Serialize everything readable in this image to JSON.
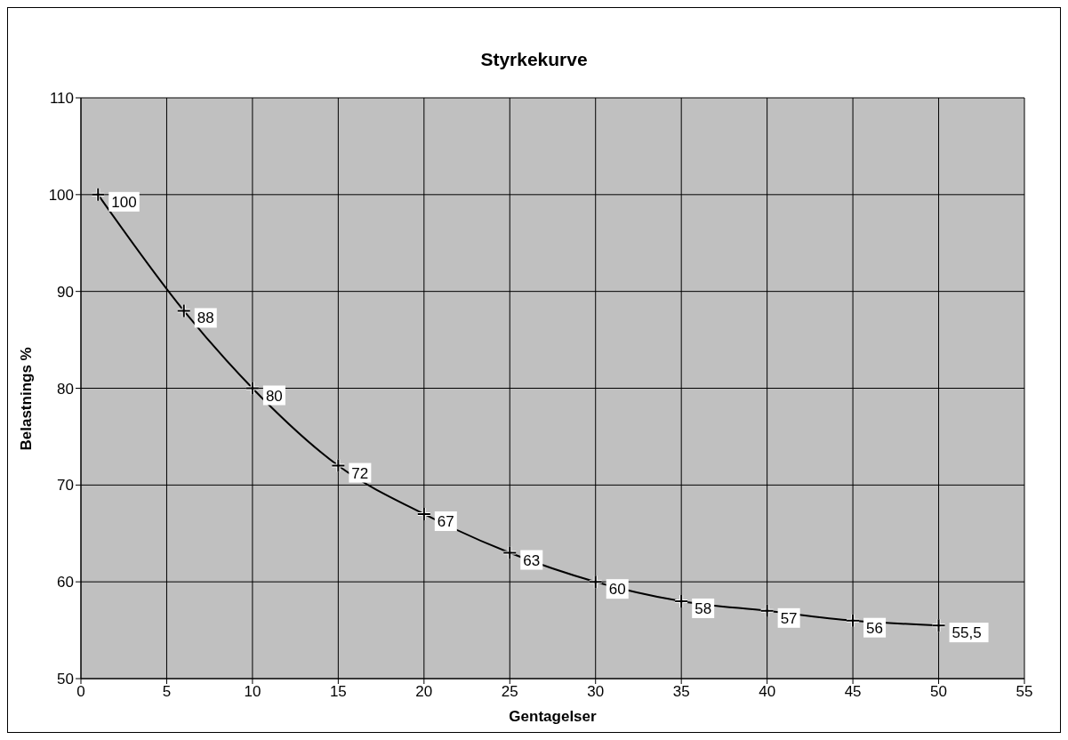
{
  "chart_data": {
    "type": "line",
    "title": "Styrkekurve",
    "xlabel": "Gentagelser",
    "ylabel": "Belastnings %",
    "x": [
      1,
      6,
      10,
      15,
      20,
      25,
      30,
      35,
      40,
      45,
      50
    ],
    "series": [
      {
        "color": "#000000",
        "values": [
          100,
          88,
          80,
          72,
          67,
          63,
          60,
          58,
          57,
          56,
          55.5
        ],
        "value_labels": [
          "100",
          "88",
          "80",
          "72",
          "67",
          "63",
          "60",
          "58",
          "57",
          "56",
          "55,5"
        ]
      }
    ],
    "xlim": [
      0,
      55
    ],
    "xticks": [
      0,
      5,
      10,
      15,
      20,
      25,
      30,
      35,
      40,
      45,
      50,
      55
    ],
    "ylim": [
      50,
      110
    ],
    "yticks": [
      50,
      60,
      70,
      80,
      90,
      100,
      110
    ],
    "grid": true,
    "marker": "cross",
    "line_style": "solid",
    "legend": false
  }
}
